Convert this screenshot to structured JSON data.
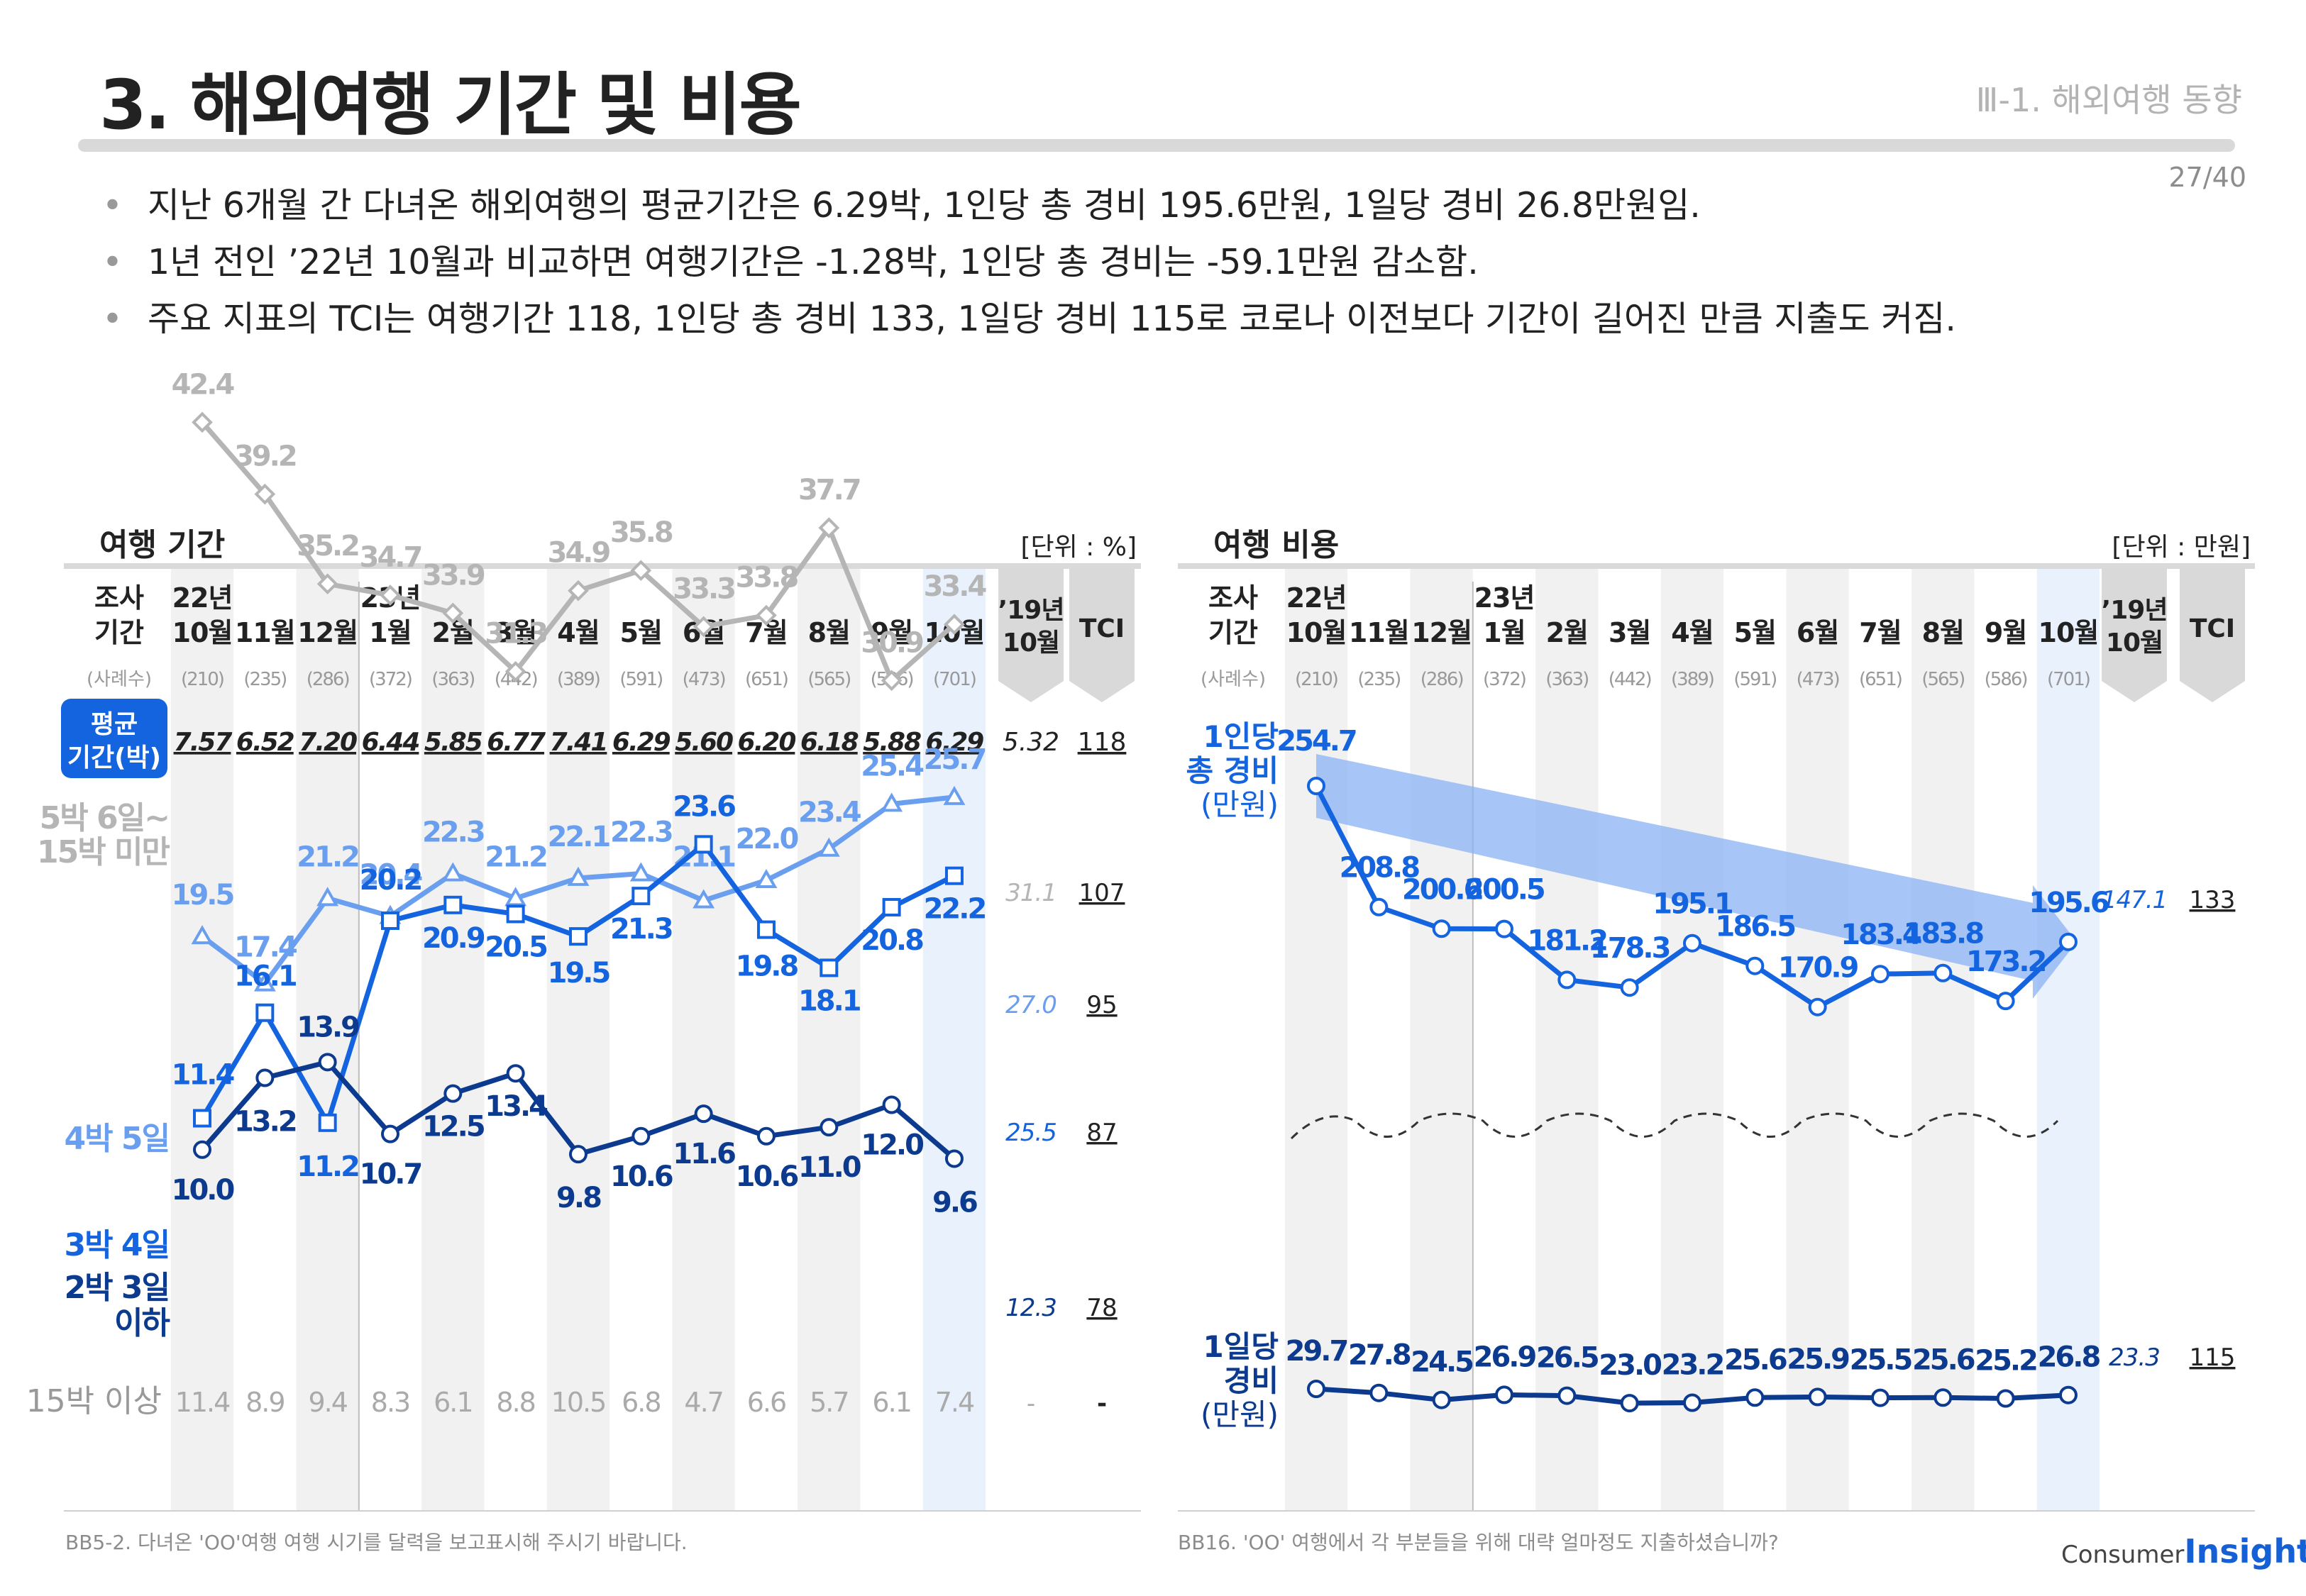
{
  "header": {
    "title": "3. 해외여행 기간 및 비용",
    "section": "Ⅲ-1. 해외여행 동향",
    "page": "27/40"
  },
  "summary": [
    "지난 6개월 간 다녀온 해외여행의 평균기간은 6.29박, 1인당 총 경비 195.6만원, 1일당 경비 26.8만원임.",
    "1년 전인 ’22년 10월과 비교하면 여행기간은 -1.28박, 1인당 총 경비는 -59.1만원 감소함.",
    "주요 지표의 TCI는 여행기간 118, 1인당 총 경비 133, 1일당 경비 115로 코로나 이전보다 기간이 길어진 만큼 지출도 커짐."
  ],
  "colors": {
    "gray": "#b5b5b5",
    "light_blue": "#6a9ff0",
    "blue": "#1464e0",
    "navy": "#0c3a8e",
    "highlight": "#e9f1fd",
    "stripe": "#f1f1f1",
    "arrow": "#8ab2f3"
  },
  "chart_data": [
    {
      "type": "line",
      "title": "여행 기간",
      "unit_label": "[단위 : %]",
      "header_label": "조사 기간",
      "sample_label": "(사례수)",
      "categories": [
        "22년 10월",
        "11월",
        "12월",
        "23년 1월",
        "2월",
        "3월",
        "4월",
        "5월",
        "6월",
        "7월",
        "8월",
        "9월",
        "10월"
      ],
      "year_labels": [
        "22년",
        "",
        "",
        "23년",
        "",
        "",
        "",
        "",
        "",
        "",
        "",
        "",
        ""
      ],
      "month_labels": [
        "10월",
        "11월",
        "12월",
        "1월",
        "2월",
        "3월",
        "4월",
        "5월",
        "6월",
        "7월",
        "8월",
        "9월",
        "10월"
      ],
      "sample_sizes": [
        "(210)",
        "(235)",
        "(286)",
        "(372)",
        "(363)",
        "(442)",
        "(389)",
        "(591)",
        "(473)",
        "(651)",
        "(565)",
        "(586)",
        "(701)"
      ],
      "reference_label": "’19년 10월",
      "tci_label": "TCI",
      "avg_row": {
        "label": "평균 기간(박)",
        "values": [
          "7.57",
          "6.52",
          "7.20",
          "6.44",
          "5.85",
          "6.77",
          "7.41",
          "6.29",
          "5.60",
          "6.20",
          "6.18",
          "5.88",
          "6.29"
        ],
        "reference": "5.32",
        "tci": "118"
      },
      "series": [
        {
          "name": "5박 6일~ 15박 미만",
          "color": "gray",
          "marker": "diamond",
          "values": [
            42.4,
            39.2,
            35.2,
            34.7,
            33.9,
            31.3,
            34.9,
            35.8,
            33.3,
            33.8,
            37.7,
            30.9,
            33.4
          ],
          "reference": "31.1",
          "tci": "107"
        },
        {
          "name": "4박 5일",
          "color": "light_blue",
          "marker": "triangle",
          "values": [
            19.5,
            17.4,
            21.2,
            20.4,
            22.3,
            21.2,
            22.1,
            22.3,
            21.1,
            22.0,
            23.4,
            25.4,
            25.7
          ],
          "reference": "27.0",
          "tci": "95"
        },
        {
          "name": "3박 4일",
          "color": "blue",
          "marker": "square",
          "values": [
            11.4,
            16.1,
            11.2,
            20.2,
            20.9,
            20.5,
            19.5,
            21.3,
            23.6,
            19.8,
            18.1,
            20.8,
            22.2
          ],
          "reference": "25.5",
          "tci": "87"
        },
        {
          "name": "2박 3일 이하",
          "color": "navy",
          "marker": "circle",
          "values": [
            10.0,
            13.2,
            13.9,
            10.7,
            12.5,
            13.4,
            9.8,
            10.6,
            11.6,
            10.6,
            11.0,
            12.0,
            9.6
          ],
          "reference": "12.3",
          "tci": "78"
        }
      ],
      "text_row": {
        "name": "15박 이상",
        "values": [
          "11.4",
          "8.9",
          "9.4",
          "8.3",
          "6.1",
          "8.8",
          "10.5",
          "6.8",
          "4.7",
          "6.6",
          "5.7",
          "6.1",
          "7.4"
        ],
        "reference": "-",
        "tci": "-"
      },
      "note": "BB5-2. 다녀온 'OO'여행 여행 시기를 달력을 보고표시해 주시기 바랍니다."
    },
    {
      "type": "line",
      "title": "여행 비용",
      "unit_label": "[단위 : 만원]",
      "header_label": "조사 기간",
      "sample_label": "(사례수)",
      "categories": [
        "22년 10월",
        "11월",
        "12월",
        "23년 1월",
        "2월",
        "3월",
        "4월",
        "5월",
        "6월",
        "7월",
        "8월",
        "9월",
        "10월"
      ],
      "year_labels": [
        "22년",
        "",
        "",
        "23년",
        "",
        "",
        "",
        "",
        "",
        "",
        "",
        "",
        ""
      ],
      "month_labels": [
        "10월",
        "11월",
        "12월",
        "1월",
        "2월",
        "3월",
        "4월",
        "5월",
        "6월",
        "7월",
        "8월",
        "9월",
        "10월"
      ],
      "sample_sizes": [
        "(210)",
        "(235)",
        "(286)",
        "(372)",
        "(363)",
        "(442)",
        "(389)",
        "(591)",
        "(473)",
        "(651)",
        "(565)",
        "(586)",
        "(701)"
      ],
      "reference_label": "’19년 10월",
      "tci_label": "TCI",
      "series": [
        {
          "name": "1인당 총 경비 (만원)",
          "color": "blue",
          "marker": "circle",
          "values": [
            254.7,
            208.8,
            200.6,
            200.5,
            181.2,
            178.3,
            195.1,
            186.5,
            170.9,
            183.4,
            183.8,
            173.2,
            195.6
          ],
          "reference": "147.1",
          "tci": "133"
        },
        {
          "name": "1일당 경비 (만원)",
          "color": "navy",
          "marker": "circle",
          "values": [
            29.7,
            27.8,
            24.5,
            26.9,
            26.5,
            23.0,
            23.2,
            25.6,
            25.9,
            25.5,
            25.6,
            25.2,
            26.8
          ],
          "reference": "23.3",
          "tci": "115"
        }
      ],
      "note": "BB16. 'OO' 여행에서 각 부분들을 위해 대략 얼마정도 지출하셨습니까?"
    }
  ],
  "logo": {
    "line1": "Consumer",
    "line2": "Insight"
  }
}
